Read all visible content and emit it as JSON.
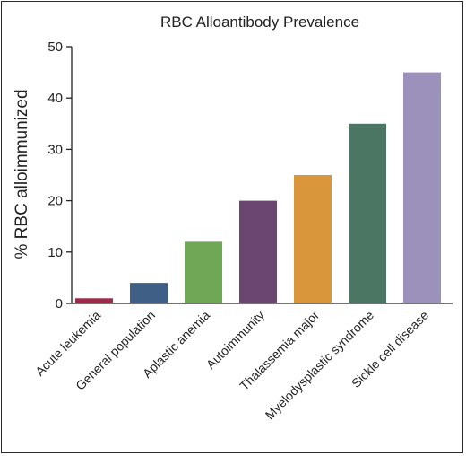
{
  "chart_data": {
    "type": "bar",
    "title": "RBC Alloantibody Prevalence",
    "xlabel": "",
    "ylabel": "% RBC alloimmunized",
    "ylim": [
      0,
      50
    ],
    "yticks": [
      0,
      10,
      20,
      30,
      40,
      50
    ],
    "grid": false,
    "categories": [
      "Acute leukemia",
      "General population",
      "Aplastic anemia",
      "Autoimmunity",
      "Thalassemia major",
      "Myelodysplastic syndrome",
      "Sickle cell disease"
    ],
    "values": [
      1,
      4,
      12,
      20,
      25,
      35,
      45
    ],
    "colors": [
      "#9e2a4a",
      "#3f5f86",
      "#6fa757",
      "#6a4670",
      "#d9963a",
      "#4a7663",
      "#9b91ba"
    ]
  }
}
